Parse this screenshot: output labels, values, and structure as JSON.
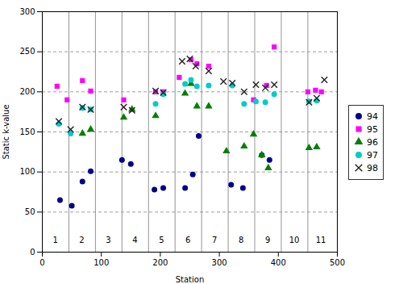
{
  "chart_data": {
    "type": "scatter",
    "xlabel": "Station",
    "ylabel": "Static k-value",
    "xlim": [
      0,
      500
    ],
    "ylim": [
      0,
      300
    ],
    "xticks": [
      0,
      100,
      200,
      300,
      400,
      500
    ],
    "yticks": [
      0,
      50,
      100,
      150,
      200,
      250,
      300
    ],
    "grid": "y",
    "legend": "right",
    "vlines": [
      45,
      90,
      135,
      180,
      225,
      270,
      315,
      360,
      405,
      450
    ],
    "annotations": [
      {
        "text": "1",
        "x": 22,
        "y": 12
      },
      {
        "text": "2",
        "x": 67,
        "y": 12
      },
      {
        "text": "3",
        "x": 112,
        "y": 12
      },
      {
        "text": "4",
        "x": 157,
        "y": 12
      },
      {
        "text": "5",
        "x": 202,
        "y": 12
      },
      {
        "text": "6",
        "x": 247,
        "y": 12
      },
      {
        "text": "7",
        "x": 292,
        "y": 12
      },
      {
        "text": "8",
        "x": 337,
        "y": 12
      },
      {
        "text": "9",
        "x": 382,
        "y": 12
      },
      {
        "text": "10",
        "x": 427,
        "y": 12
      },
      {
        "text": "11",
        "x": 472,
        "y": 12
      }
    ],
    "series": [
      {
        "name": "94",
        "color": "#00008B",
        "marker": "circle",
        "x": [
          30,
          50,
          68,
          82,
          135,
          150,
          190,
          205,
          242,
          255,
          265,
          320,
          340,
          372,
          385
        ],
        "values": [
          65,
          58,
          88,
          101,
          115,
          110,
          78,
          80,
          80,
          97,
          145,
          84,
          80,
          121,
          115
        ]
      },
      {
        "name": "95",
        "color": "#FF00FF",
        "marker": "square",
        "x": [
          25,
          42,
          68,
          82,
          138,
          192,
          205,
          232,
          252,
          262,
          282,
          358,
          380,
          393,
          450,
          463,
          473
        ],
        "values": [
          207,
          190,
          214,
          201,
          190,
          200,
          200,
          218,
          240,
          235,
          232,
          190,
          208,
          256,
          200,
          202,
          200
        ]
      },
      {
        "name": "96",
        "color": "#008000",
        "marker": "triangle",
        "x": [
          68,
          82,
          138,
          152,
          192,
          242,
          252,
          262,
          282,
          312,
          342,
          358,
          372,
          383,
          452,
          465
        ],
        "values": [
          148,
          153,
          168,
          178,
          170,
          198,
          210,
          182,
          182,
          126,
          132,
          147,
          121,
          105,
          130,
          131
        ]
      },
      {
        "name": "97",
        "color": "#00CCCC",
        "marker": "circle",
        "x": [
          28,
          48,
          68,
          82,
          192,
          205,
          242,
          252,
          262,
          282,
          322,
          342,
          362,
          378,
          393,
          452,
          465
        ],
        "values": [
          160,
          148,
          180,
          178,
          185,
          197,
          210,
          215,
          207,
          208,
          208,
          185,
          188,
          187,
          197,
          188,
          189
        ]
      },
      {
        "name": "98",
        "color": "#222222",
        "marker": "x",
        "x": [
          28,
          48,
          68,
          82,
          138,
          152,
          192,
          205,
          237,
          250,
          260,
          282,
          307,
          322,
          342,
          362,
          378,
          393,
          452,
          465,
          478
        ],
        "values": [
          163,
          153,
          181,
          178,
          181,
          177,
          201,
          199,
          238,
          241,
          232,
          226,
          213,
          211,
          200,
          209,
          205,
          209,
          187,
          192,
          215
        ]
      }
    ]
  }
}
